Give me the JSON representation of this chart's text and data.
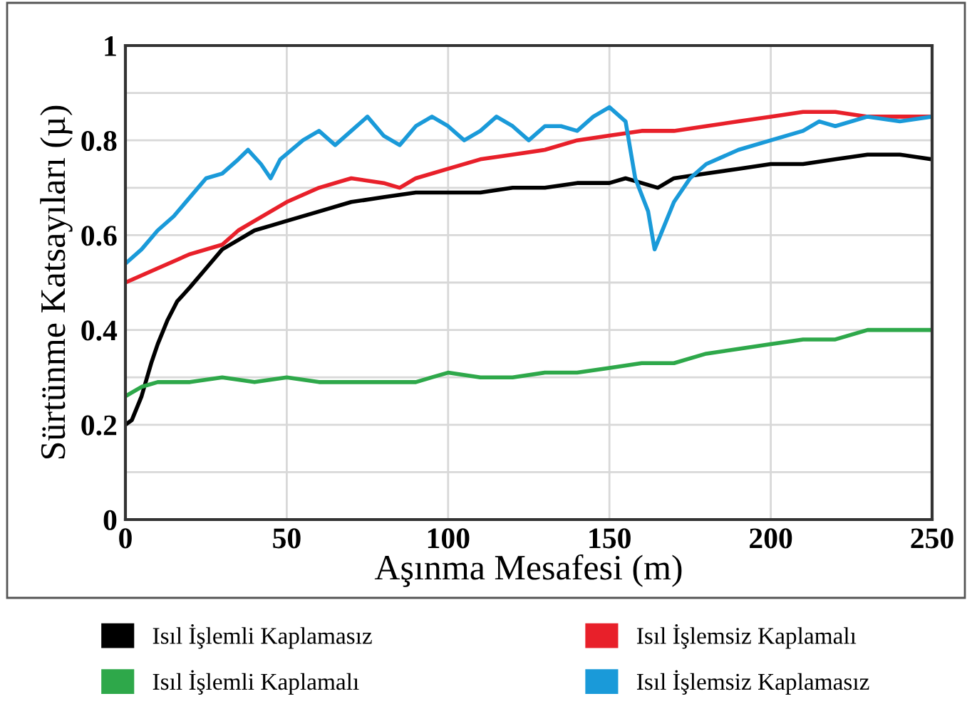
{
  "chart_data": {
    "type": "line",
    "xlabel": "Aşınma Mesafesi (m)",
    "ylabel": "Sürtünme Katsayıları (µ)",
    "xlim": [
      0,
      250
    ],
    "xticks": [
      0,
      50,
      100,
      150,
      200,
      250
    ],
    "ylim": [
      0,
      1
    ],
    "yticks": [
      0,
      {
        "value": 0.1,
        "label": null
      },
      0.2,
      {
        "value": 0.3,
        "label": null
      },
      0.4,
      {
        "value": 0.5,
        "label": null
      },
      0.6,
      {
        "value": 0.7,
        "label": null
      },
      0.8,
      {
        "value": 0.9,
        "label": null
      },
      1
    ],
    "grid": true,
    "legend": "bottom",
    "marker": "none",
    "line_style": "solid",
    "series": [
      {
        "name": "Isıl İşlemli Kaplamasız",
        "color": "#000000",
        "x": [
          0,
          2,
          5,
          8,
          10,
          13,
          16,
          20,
          25,
          30,
          35,
          40,
          45,
          50,
          60,
          70,
          80,
          90,
          100,
          110,
          120,
          130,
          140,
          150,
          155,
          160,
          165,
          170,
          180,
          190,
          200,
          210,
          220,
          230,
          240,
          250
        ],
        "values": [
          0.2,
          0.21,
          0.26,
          0.33,
          0.37,
          0.42,
          0.46,
          0.49,
          0.53,
          0.57,
          0.59,
          0.61,
          0.62,
          0.63,
          0.65,
          0.67,
          0.68,
          0.69,
          0.69,
          0.69,
          0.7,
          0.7,
          0.71,
          0.71,
          0.72,
          0.71,
          0.7,
          0.72,
          0.73,
          0.74,
          0.75,
          0.75,
          0.76,
          0.77,
          0.77,
          0.76
        ]
      },
      {
        "name": "Isıl İşlemsiz Kaplamalı",
        "color": "#e8202a",
        "x": [
          0,
          10,
          20,
          30,
          35,
          40,
          50,
          60,
          70,
          80,
          85,
          90,
          100,
          110,
          120,
          130,
          140,
          150,
          160,
          170,
          180,
          190,
          200,
          210,
          220,
          230,
          240,
          250
        ],
        "values": [
          0.5,
          0.53,
          0.56,
          0.58,
          0.61,
          0.63,
          0.67,
          0.7,
          0.72,
          0.71,
          0.7,
          0.72,
          0.74,
          0.76,
          0.77,
          0.78,
          0.8,
          0.81,
          0.82,
          0.82,
          0.83,
          0.84,
          0.85,
          0.86,
          0.86,
          0.85,
          0.85,
          0.85
        ]
      },
      {
        "name": "Isıl İşlemli Kaplamalı",
        "color": "#2ea84a",
        "x": [
          0,
          5,
          10,
          20,
          30,
          40,
          50,
          60,
          70,
          80,
          90,
          95,
          100,
          110,
          120,
          130,
          140,
          150,
          160,
          170,
          180,
          190,
          200,
          210,
          220,
          230,
          240,
          250
        ],
        "values": [
          0.26,
          0.28,
          0.29,
          0.29,
          0.3,
          0.29,
          0.3,
          0.29,
          0.29,
          0.29,
          0.29,
          0.3,
          0.31,
          0.3,
          0.3,
          0.31,
          0.31,
          0.32,
          0.33,
          0.33,
          0.35,
          0.36,
          0.37,
          0.38,
          0.38,
          0.4,
          0.4,
          0.4
        ]
      },
      {
        "name": "Isıl İşlemsiz Kaplamasız",
        "color": "#1a9ad9",
        "x": [
          0,
          5,
          10,
          15,
          20,
          25,
          30,
          35,
          38,
          42,
          45,
          48,
          55,
          60,
          65,
          70,
          75,
          80,
          85,
          90,
          95,
          100,
          105,
          110,
          115,
          120,
          125,
          130,
          135,
          140,
          145,
          150,
          155,
          158,
          162,
          164,
          167,
          170,
          175,
          180,
          190,
          200,
          210,
          215,
          220,
          230,
          240,
          250
        ],
        "values": [
          0.54,
          0.57,
          0.61,
          0.64,
          0.68,
          0.72,
          0.73,
          0.76,
          0.78,
          0.75,
          0.72,
          0.76,
          0.8,
          0.82,
          0.79,
          0.82,
          0.85,
          0.81,
          0.79,
          0.83,
          0.85,
          0.83,
          0.8,
          0.82,
          0.85,
          0.83,
          0.8,
          0.83,
          0.83,
          0.82,
          0.85,
          0.87,
          0.84,
          0.72,
          0.65,
          0.57,
          0.62,
          0.67,
          0.72,
          0.75,
          0.78,
          0.8,
          0.82,
          0.84,
          0.83,
          0.85,
          0.84,
          0.85
        ]
      }
    ]
  }
}
